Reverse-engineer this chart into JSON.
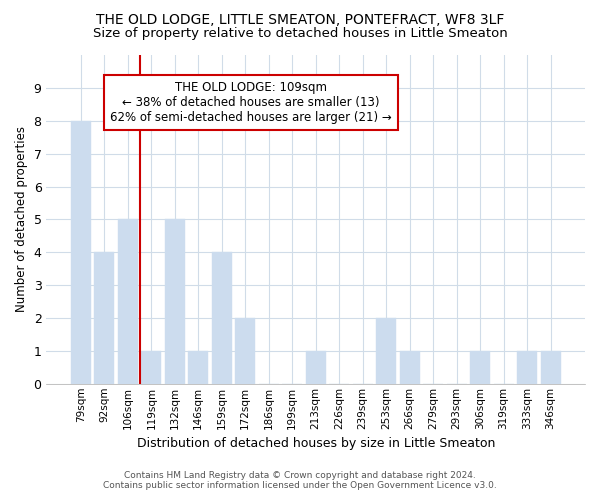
{
  "title": "THE OLD LODGE, LITTLE SMEATON, PONTEFRACT, WF8 3LF",
  "subtitle": "Size of property relative to detached houses in Little Smeaton",
  "xlabel": "Distribution of detached houses by size in Little Smeaton",
  "ylabel": "Number of detached properties",
  "categories": [
    "79sqm",
    "92sqm",
    "106sqm",
    "119sqm",
    "132sqm",
    "146sqm",
    "159sqm",
    "172sqm",
    "186sqm",
    "199sqm",
    "213sqm",
    "226sqm",
    "239sqm",
    "253sqm",
    "266sqm",
    "279sqm",
    "293sqm",
    "306sqm",
    "319sqm",
    "333sqm",
    "346sqm"
  ],
  "values": [
    8,
    4,
    5,
    1,
    5,
    1,
    4,
    2,
    0,
    0,
    1,
    0,
    0,
    2,
    1,
    0,
    0,
    1,
    0,
    1,
    1
  ],
  "bar_color": "#ccdcee",
  "bar_edgecolor": "#ccdcee",
  "redline_index": 2,
  "annotation_text": "THE OLD LODGE: 109sqm\n← 38% of detached houses are smaller (13)\n62% of semi-detached houses are larger (21) →",
  "annotation_box_facecolor": "#ffffff",
  "annotation_box_edgecolor": "#cc0000",
  "redline_color": "#cc0000",
  "ylim": [
    0,
    10
  ],
  "yticks": [
    0,
    1,
    2,
    3,
    4,
    5,
    6,
    7,
    8,
    9,
    10
  ],
  "figure_bg": "#ffffff",
  "plot_bg": "#ffffff",
  "grid_color": "#d0dce8",
  "title_fontsize": 10,
  "subtitle_fontsize": 9.5,
  "footer_line1": "Contains HM Land Registry data © Crown copyright and database right 2024.",
  "footer_line2": "Contains public sector information licensed under the Open Government Licence v3.0."
}
